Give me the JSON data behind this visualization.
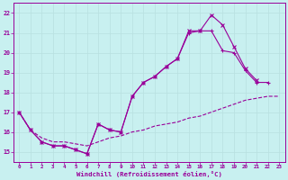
{
  "title": "",
  "xlabel": "Windchill (Refroidissement éolien,°C)",
  "ylabel": "",
  "bg_color": "#c8f0f0",
  "line_color": "#990099",
  "grid_color": "#b8e0e0",
  "xlim": [
    -0.5,
    23.5
  ],
  "ylim": [
    14.5,
    22.5
  ],
  "yticks": [
    15,
    16,
    17,
    18,
    19,
    20,
    21,
    22
  ],
  "xticks": [
    0,
    1,
    2,
    3,
    4,
    5,
    6,
    7,
    8,
    9,
    10,
    11,
    12,
    13,
    14,
    15,
    16,
    17,
    18,
    19,
    20,
    21,
    22,
    23
  ],
  "series1_x": [
    0,
    1,
    2,
    3,
    4,
    5,
    6,
    7,
    8,
    9,
    10,
    11,
    12,
    13,
    14,
    15,
    16,
    17,
    18,
    19,
    20,
    21,
    22,
    23
  ],
  "series1_y": [
    17.0,
    16.1,
    15.7,
    15.5,
    15.5,
    15.4,
    15.3,
    15.5,
    15.7,
    15.8,
    16.0,
    16.1,
    16.3,
    16.4,
    16.5,
    16.7,
    16.8,
    17.0,
    17.2,
    17.4,
    17.6,
    17.7,
    17.8,
    17.8
  ],
  "series2_x": [
    0,
    1,
    2,
    3,
    4,
    5,
    6,
    7,
    8,
    9,
    10,
    11,
    12,
    13,
    14,
    15,
    16,
    17,
    18,
    19,
    20,
    21,
    22,
    23
  ],
  "series2_y": [
    17.0,
    16.1,
    15.5,
    15.3,
    15.3,
    15.1,
    14.9,
    16.4,
    16.1,
    16.0,
    17.8,
    18.5,
    18.8,
    19.3,
    19.7,
    21.0,
    21.1,
    21.1,
    20.1,
    20.0,
    19.1,
    18.5,
    18.5,
    null
  ],
  "series3_x": [
    0,
    1,
    2,
    3,
    4,
    5,
    6,
    7,
    8,
    9,
    10,
    11,
    12,
    13,
    14,
    15,
    16,
    17,
    18,
    19,
    20,
    21,
    22,
    23
  ],
  "series3_y": [
    17.0,
    16.1,
    15.5,
    15.3,
    15.3,
    15.1,
    14.9,
    16.4,
    16.1,
    16.0,
    17.8,
    18.5,
    18.8,
    19.3,
    19.7,
    21.1,
    21.1,
    21.9,
    21.4,
    20.3,
    19.2,
    18.6,
    null,
    null
  ]
}
